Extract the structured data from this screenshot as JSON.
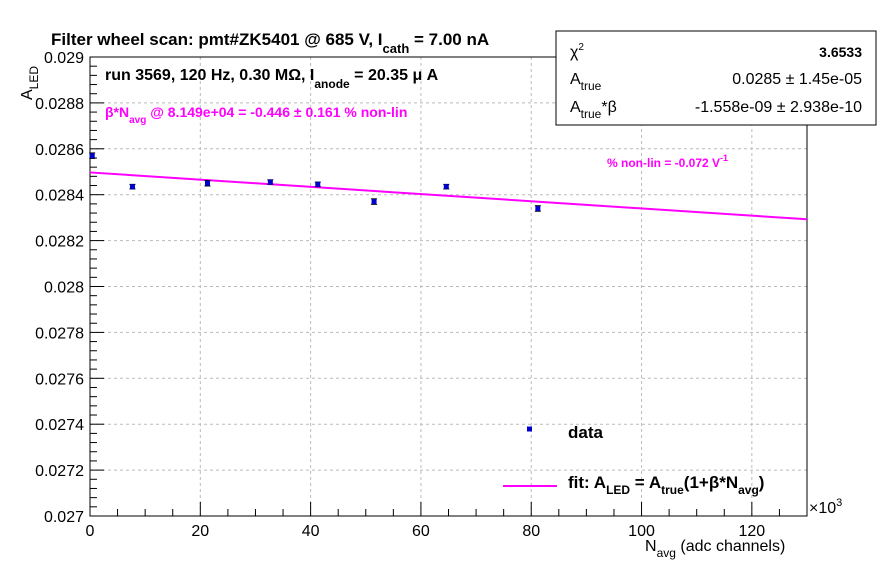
{
  "chart_data": {
    "type": "scatter",
    "title": "Filter wheel scan: pmt#ZK5401 @   685 V, I",
    "title_sub": "cath",
    "title_tail": " = 7.00 nA",
    "run_info": "run 3569, 120 Hz, 0.30 MΩ, I",
    "run_info_sub": "anode",
    "run_info_tail": " = 20.35 μ A",
    "nonlin_note": {
      "pre": "β*N",
      "sub": "avg",
      "post": " @ 8.149e+04 = -0.446 ± 0.161 % non-lin"
    },
    "slope_note": {
      "text": "% non-lin = -0.072 V",
      "sup": "-1"
    },
    "ylabel": {
      "main": "A",
      "sub": "LED"
    },
    "xlabel": {
      "main": "N",
      "sub": "avg",
      "tail": " (adc channels)"
    },
    "x_exponent": "×10",
    "x_exponent_sup": "3",
    "xlim": [
      0,
      130
    ],
    "ylim": [
      0.027,
      0.029
    ],
    "x_ticks": [
      "0",
      "20",
      "40",
      "60",
      "80",
      "100",
      "120"
    ],
    "y_ticks": [
      "0.027",
      "0.0272",
      "0.0274",
      "0.0276",
      "0.0278",
      "0.028",
      "0.0282",
      "0.0284",
      "0.0286",
      "0.0288",
      "0.029"
    ],
    "grid": true,
    "colors": {
      "data": "#0000cc",
      "fit": "#ff00ff",
      "axis": "#000000",
      "grid": "#bbbbbb"
    },
    "series": [
      {
        "name": "data",
        "points": [
          {
            "x": 0.4,
            "y": 0.02857,
            "err": 1.2e-05
          },
          {
            "x": 7.7,
            "y": 0.028435,
            "err": 1e-05
          },
          {
            "x": 21.3,
            "y": 0.02845,
            "err": 1.2e-05
          },
          {
            "x": 32.7,
            "y": 0.028455,
            "err": 1e-05
          },
          {
            "x": 41.3,
            "y": 0.028445,
            "err": 1e-05
          },
          {
            "x": 51.5,
            "y": 0.02837,
            "err": 1.2e-05
          },
          {
            "x": 64.6,
            "y": 0.028435,
            "err": 1e-05
          },
          {
            "x": 81.2,
            "y": 0.02834,
            "err": 1.2e-05
          }
        ]
      },
      {
        "name": "fit",
        "line": {
          "x": [
            0,
            130
          ],
          "y": [
            0.028497,
            0.028293
          ]
        }
      }
    ],
    "legend": {
      "placement": "bottom-right",
      "entries": [
        {
          "label": "data",
          "kind": "marker"
        },
        {
          "label": "fit: A_LED = A_true(1+β*N_avg)",
          "kind": "line"
        }
      ]
    },
    "stats_box": {
      "placement": "top-right",
      "rows": [
        {
          "name": "χ",
          "sup": "2",
          "sub": "",
          "name_tail": "",
          "value": "3.6533"
        },
        {
          "name": "A",
          "sup": "",
          "sub": "true",
          "name_tail": "",
          "value": "0.0285 ± 1.45e-05"
        },
        {
          "name": "A",
          "sup": "",
          "sub": "true",
          "name_tail": "*β",
          "value": "-1.558e-09 ± 2.938e-10"
        }
      ]
    }
  }
}
